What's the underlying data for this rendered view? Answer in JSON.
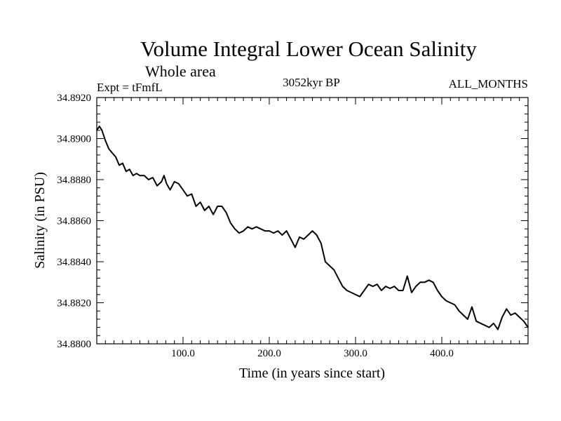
{
  "chart_data": {
    "type": "line",
    "title": "Volume Integral Lower Ocean Salinity",
    "subtitle": "Whole area",
    "left_label": "Expt = tFmfL",
    "center_label": "3052kyr BP",
    "right_label": "ALL_MONTHS",
    "xlabel": "Time (in years since start)",
    "ylabel": "Salinity (in PSU)",
    "xlim": [
      0,
      500
    ],
    "ylim": [
      34.88,
      34.892
    ],
    "x_major_ticks": [
      100,
      200,
      300,
      400
    ],
    "x_tick_labels": [
      "100.0",
      "200.0",
      "300.0",
      "400.0"
    ],
    "y_major_ticks": [
      34.88,
      34.882,
      34.884,
      34.886,
      34.888,
      34.89,
      34.892
    ],
    "y_tick_labels": [
      "34.8800",
      "34.8820",
      "34.8840",
      "34.8860",
      "34.8880",
      "34.8900",
      "34.8920"
    ],
    "series": [
      {
        "name": "salinity",
        "x": [
          0,
          3,
          6,
          10,
          14,
          18,
          22,
          26,
          30,
          34,
          38,
          42,
          46,
          50,
          55,
          60,
          65,
          70,
          75,
          78,
          81,
          85,
          90,
          95,
          100,
          105,
          110,
          115,
          120,
          125,
          130,
          135,
          140,
          145,
          150,
          155,
          160,
          165,
          170,
          175,
          180,
          185,
          190,
          195,
          200,
          205,
          210,
          215,
          220,
          225,
          230,
          235,
          240,
          245,
          250,
          255,
          260,
          265,
          270,
          275,
          280,
          285,
          290,
          295,
          300,
          305,
          310,
          315,
          320,
          325,
          330,
          335,
          340,
          345,
          350,
          355,
          360,
          365,
          370,
          375,
          380,
          385,
          390,
          395,
          400,
          405,
          410,
          415,
          420,
          425,
          430,
          435,
          440,
          445,
          450,
          455,
          460,
          465,
          470,
          475,
          480,
          485,
          490,
          495,
          500
        ],
        "values": [
          34.8904,
          34.8906,
          34.8904,
          34.8899,
          34.8895,
          34.8893,
          34.8891,
          34.8887,
          34.8888,
          34.8884,
          34.8885,
          34.8882,
          34.8883,
          34.8882,
          34.8882,
          34.888,
          34.8881,
          34.8877,
          34.8879,
          34.8882,
          34.8878,
          34.8875,
          34.8879,
          34.8878,
          34.8875,
          34.8872,
          34.8873,
          34.8867,
          34.8869,
          34.8865,
          34.8867,
          34.8863,
          34.8867,
          34.8867,
          34.8864,
          34.8859,
          34.8856,
          34.8854,
          34.8855,
          34.8857,
          34.8856,
          34.8857,
          34.8856,
          34.8855,
          34.8855,
          34.8854,
          34.8855,
          34.8853,
          34.8855,
          34.8851,
          34.8847,
          34.8852,
          34.8851,
          34.8853,
          34.8855,
          34.8853,
          34.8849,
          34.884,
          34.8838,
          34.8836,
          34.8832,
          34.8828,
          34.8826,
          34.8825,
          34.8824,
          34.8823,
          34.8826,
          34.8829,
          34.8828,
          34.8829,
          34.8826,
          34.8828,
          34.8827,
          34.8828,
          34.8826,
          34.8826,
          34.8833,
          34.8825,
          34.8828,
          34.883,
          34.883,
          34.8831,
          34.883,
          34.8826,
          34.8823,
          34.8821,
          34.882,
          34.8819,
          34.8816,
          34.8814,
          34.8812,
          34.8818,
          34.8811,
          34.881,
          34.8809,
          34.8808,
          34.881,
          34.8807,
          34.8813,
          34.8817,
          34.8814,
          34.8815,
          34.8813,
          34.8811,
          34.8808
        ]
      }
    ]
  }
}
